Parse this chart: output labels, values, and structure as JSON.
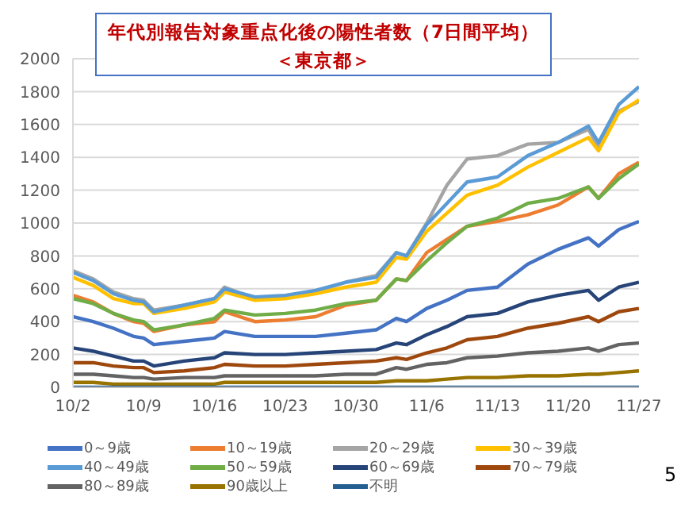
{
  "chart_data": {
    "type": "line",
    "title": "年代別報告対象重点化後の陽性者数（7日間平均）",
    "subtitle": "＜東京都＞",
    "x": [
      "--10-02",
      "--10-04",
      "--10-06",
      "--10-08",
      "--10-09",
      "--10-10",
      "--10-13",
      "--10-16",
      "--10-17",
      "--10-20",
      "--10-23",
      "--10-26",
      "--10-29",
      "--11-01",
      "--11-03",
      "--11-04",
      "--11-06",
      "--11-08",
      "--11-10",
      "--11-13",
      "--11-16",
      "--11-19",
      "--11-22",
      "--11-23",
      "--11-25",
      "--11-27"
    ],
    "xlim": [
      "--10-02",
      "--11-27"
    ],
    "xticks": [
      {
        "value": "--10-02",
        "label": "10/2"
      },
      {
        "value": "--10-09",
        "label": "10/9"
      },
      {
        "value": "--10-16",
        "label": "10/16"
      },
      {
        "value": "--10-23",
        "label": "10/23"
      },
      {
        "value": "--10-30",
        "label": "10/30"
      },
      {
        "value": "--11-06",
        "label": "11/6"
      },
      {
        "value": "--11-13",
        "label": "11/13"
      },
      {
        "value": "--11-20",
        "label": "11/20"
      },
      {
        "value": "--11-27",
        "label": "11/27"
      }
    ],
    "ylim": [
      0,
      2000
    ],
    "yticks": [
      0,
      200,
      400,
      600,
      800,
      1000,
      1200,
      1400,
      1600,
      1800,
      2000
    ],
    "grid": "y",
    "legend": "bottom",
    "marker": "none",
    "line_style": "solid",
    "annotations": [
      "5"
    ],
    "series": [
      {
        "name": "0～9歳",
        "color": "#4472c4",
        "values": [
          430,
          400,
          360,
          310,
          300,
          260,
          280,
          300,
          340,
          310,
          310,
          310,
          330,
          350,
          420,
          400,
          480,
          530,
          590,
          610,
          750,
          840,
          910,
          860,
          960,
          1010
        ]
      },
      {
        "name": "10～19歳",
        "color": "#ed7d31",
        "values": [
          560,
          520,
          450,
          400,
          390,
          340,
          380,
          400,
          460,
          400,
          410,
          430,
          500,
          530,
          660,
          650,
          820,
          900,
          980,
          1010,
          1050,
          1110,
          1220,
          1150,
          1300,
          1370
        ]
      },
      {
        "name": "20～29歳",
        "color": "#a5a5a5",
        "values": [
          710,
          660,
          580,
          540,
          530,
          470,
          500,
          540,
          610,
          540,
          550,
          580,
          640,
          680,
          820,
          800,
          1000,
          1230,
          1390,
          1410,
          1480,
          1490,
          1570,
          1460,
          1680,
          1740
        ]
      },
      {
        "name": "30～39歳",
        "color": "#ffc000",
        "values": [
          670,
          620,
          540,
          510,
          510,
          450,
          480,
          520,
          580,
          530,
          540,
          570,
          610,
          640,
          790,
          780,
          950,
          1060,
          1170,
          1230,
          1340,
          1430,
          1520,
          1440,
          1670,
          1750
        ]
      },
      {
        "name": "40～49歳",
        "color": "#5b9bd5",
        "values": [
          700,
          650,
          570,
          530,
          520,
          460,
          500,
          540,
          600,
          550,
          560,
          590,
          640,
          670,
          820,
          800,
          990,
          1120,
          1250,
          1280,
          1410,
          1490,
          1590,
          1490,
          1720,
          1830
        ]
      },
      {
        "name": "50～59歳",
        "color": "#70ad47",
        "values": [
          540,
          510,
          450,
          410,
          400,
          350,
          380,
          420,
          470,
          440,
          450,
          470,
          510,
          530,
          660,
          650,
          770,
          880,
          980,
          1030,
          1120,
          1150,
          1220,
          1150,
          1270,
          1360
        ]
      },
      {
        "name": "60～69歳",
        "color": "#264478",
        "values": [
          240,
          220,
          190,
          160,
          160,
          130,
          160,
          180,
          210,
          200,
          200,
          210,
          220,
          230,
          270,
          260,
          320,
          370,
          430,
          450,
          520,
          560,
          590,
          530,
          610,
          640
        ]
      },
      {
        "name": "70～79歳",
        "color": "#9e480e",
        "values": [
          150,
          150,
          130,
          120,
          120,
          90,
          100,
          120,
          140,
          130,
          130,
          140,
          150,
          160,
          180,
          170,
          210,
          240,
          290,
          310,
          360,
          390,
          430,
          400,
          460,
          480
        ]
      },
      {
        "name": "80～89歳",
        "color": "#636363",
        "values": [
          80,
          80,
          70,
          60,
          60,
          50,
          60,
          60,
          70,
          70,
          70,
          70,
          80,
          80,
          120,
          110,
          140,
          150,
          180,
          190,
          210,
          220,
          240,
          220,
          260,
          270
        ]
      },
      {
        "name": "90歳以上",
        "color": "#997300",
        "values": [
          30,
          30,
          20,
          20,
          20,
          20,
          20,
          20,
          30,
          30,
          30,
          30,
          30,
          30,
          40,
          40,
          40,
          50,
          60,
          60,
          70,
          70,
          80,
          80,
          90,
          100
        ]
      },
      {
        "name": "不明",
        "color": "#255e91",
        "values": [
          0,
          0,
          0,
          0,
          0,
          0,
          0,
          0,
          0,
          0,
          0,
          0,
          0,
          0,
          0,
          0,
          0,
          0,
          0,
          0,
          0,
          0,
          0,
          0,
          0,
          0
        ]
      }
    ]
  }
}
